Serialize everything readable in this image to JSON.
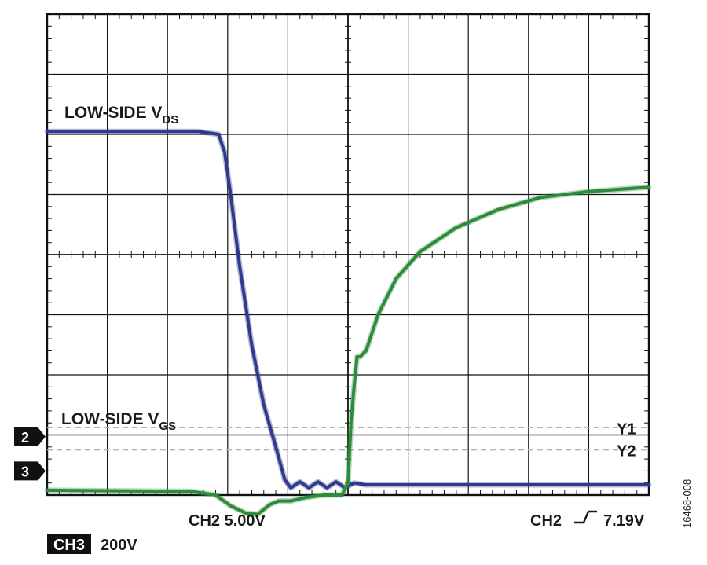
{
  "chart_data": {
    "type": "line",
    "title": "",
    "grid": true,
    "divisions": {
      "x": 10,
      "y": 8
    },
    "xlim": [
      0,
      10
    ],
    "ylim": [
      0,
      8
    ],
    "series": [
      {
        "name": "LOW-SIDE V",
        "subscript": "DS",
        "color": "#2e3a8c",
        "x": [
          0,
          2.5,
          2.85,
          2.95,
          3.05,
          3.2,
          3.4,
          3.6,
          3.8,
          3.95,
          4.05,
          4.2,
          4.35,
          4.5,
          4.65,
          4.8,
          4.95,
          5.1,
          5.3,
          6,
          7,
          8,
          9,
          10
        ],
        "y": [
          6.05,
          6.05,
          6.0,
          5.7,
          5.0,
          3.8,
          2.5,
          1.5,
          0.8,
          0.25,
          0.12,
          0.22,
          0.12,
          0.22,
          0.12,
          0.22,
          0.12,
          0.2,
          0.17,
          0.17,
          0.17,
          0.17,
          0.17,
          0.17
        ]
      },
      {
        "name": "LOW-SIDE V",
        "subscript": "GS",
        "color": "#2e8b3a",
        "x": [
          0,
          2.4,
          2.8,
          3.05,
          3.3,
          3.5,
          3.7,
          3.85,
          4.05,
          4.3,
          4.6,
          4.9,
          5.0,
          5.02,
          5.05,
          5.1,
          5.15,
          5.2,
          5.3,
          5.5,
          5.8,
          6.2,
          6.8,
          7.5,
          8.2,
          9,
          10
        ],
        "y": [
          0.08,
          0.06,
          0.0,
          -0.18,
          -0.3,
          -0.32,
          -0.16,
          -0.1,
          -0.1,
          -0.04,
          0.0,
          0.0,
          0.2,
          0.6,
          1.2,
          1.8,
          2.3,
          2.3,
          2.4,
          3.0,
          3.6,
          4.05,
          4.45,
          4.75,
          4.95,
          5.05,
          5.12
        ]
      }
    ],
    "cursors": [
      {
        "label": "Y1",
        "level": 1.12
      },
      {
        "label": "Y2",
        "level": 0.75
      }
    ],
    "channel_markers": [
      {
        "label": "2",
        "level": 0.97
      },
      {
        "label": "3",
        "level": 0.4
      }
    ],
    "ch2_ref_level": 1.0,
    "ch3_ref_level": 0.0,
    "bottom_labels": {
      "ch2_scale": "CH2 5.00V",
      "trigger": "CH2",
      "trigger_level": "7.19V",
      "ch3_tag": "CH3",
      "ch3_scale": "200V"
    },
    "figure_id": "16468-008"
  }
}
